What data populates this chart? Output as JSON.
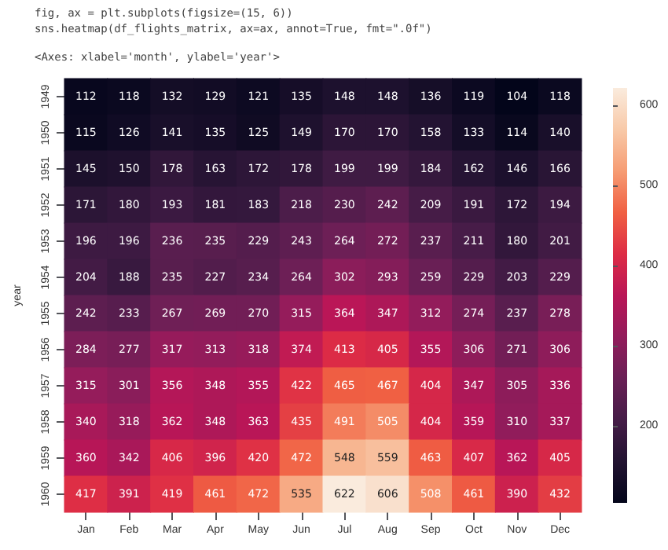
{
  "chart_data": {
    "type": "heatmap",
    "ylabel": "year",
    "annotations": [
      "fig, ax = plt.subplots(figsize=(15, 6))",
      "sns.heatmap(df_flights_matrix, ax=ax, annot=True, fmt=\".0f\")",
      "<Axes: xlabel='month', ylabel='year'>"
    ],
    "categories": [
      "Jan",
      "Feb",
      "Mar",
      "Apr",
      "May",
      "Jun",
      "Jul",
      "Aug",
      "Sep",
      "Oct",
      "Nov",
      "Dec"
    ],
    "y_categories": [
      "1949",
      "1950",
      "1951",
      "1952",
      "1953",
      "1954",
      "1955",
      "1956",
      "1957",
      "1958",
      "1959",
      "1960"
    ],
    "cells": [
      [
        112,
        118,
        132,
        129,
        121,
        135,
        148,
        148,
        136,
        119,
        104,
        118
      ],
      [
        115,
        126,
        141,
        135,
        125,
        149,
        170,
        170,
        158,
        133,
        114,
        140
      ],
      [
        145,
        150,
        178,
        163,
        172,
        178,
        199,
        199,
        184,
        162,
        146,
        166
      ],
      [
        171,
        180,
        193,
        181,
        183,
        218,
        230,
        242,
        209,
        191,
        172,
        194
      ],
      [
        196,
        196,
        236,
        235,
        229,
        243,
        264,
        272,
        237,
        211,
        180,
        201
      ],
      [
        204,
        188,
        235,
        227,
        234,
        264,
        302,
        293,
        259,
        229,
        203,
        229
      ],
      [
        242,
        233,
        267,
        269,
        270,
        315,
        364,
        347,
        312,
        274,
        237,
        278
      ],
      [
        284,
        277,
        317,
        313,
        318,
        374,
        413,
        405,
        355,
        306,
        271,
        306
      ],
      [
        315,
        301,
        356,
        348,
        355,
        422,
        465,
        467,
        404,
        347,
        305,
        336
      ],
      [
        340,
        318,
        362,
        348,
        363,
        435,
        491,
        505,
        404,
        359,
        310,
        337
      ],
      [
        360,
        342,
        406,
        396,
        420,
        472,
        548,
        559,
        463,
        407,
        362,
        405
      ],
      [
        417,
        391,
        419,
        461,
        472,
        535,
        622,
        606,
        508,
        461,
        390,
        432
      ]
    ],
    "clim": [
      104,
      622
    ],
    "cticks": [
      200,
      300,
      400,
      500,
      600
    ],
    "data_labels": true
  }
}
